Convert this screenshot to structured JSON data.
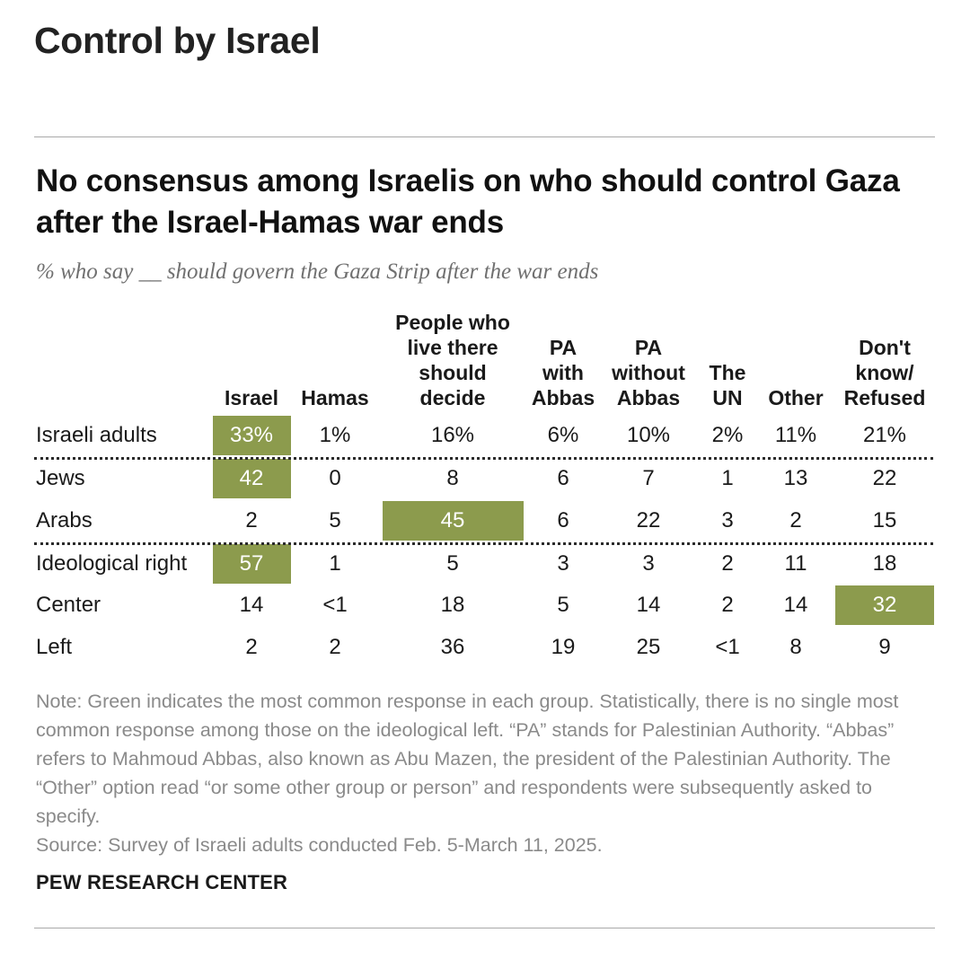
{
  "section_title": "Control by Israel",
  "chart_data": {
    "type": "table",
    "title": "No consensus among Israelis on who should control Gaza after the Israel-Hamas war ends",
    "subtitle": "% who say __ should govern the Gaza Strip after the war ends",
    "columns": [
      "Israel",
      "Hamas",
      "People who\nlive there\nshould\ndecide",
      "PA\nwith\nAbbas",
      "PA\nwithout\nAbbas",
      "The\nUN",
      "Other",
      "Don't\nknow/\nRefused"
    ],
    "rows": [
      {
        "label": "Israeli adults",
        "values": [
          "33%",
          "1%",
          "16%",
          "6%",
          "10%",
          "2%",
          "11%",
          "21%"
        ],
        "highlight": 0
      },
      {
        "label": "Jews",
        "values": [
          "42",
          "0",
          "8",
          "6",
          "7",
          "1",
          "13",
          "22"
        ],
        "highlight": 0
      },
      {
        "label": "Arabs",
        "values": [
          "2",
          "5",
          "45",
          "6",
          "22",
          "3",
          "2",
          "15"
        ],
        "highlight": 2
      },
      {
        "label": "Ideological right",
        "values": [
          "57",
          "1",
          "5",
          "3",
          "3",
          "2",
          "11",
          "18"
        ],
        "highlight": 0
      },
      {
        "label": "Center",
        "values": [
          "14",
          "<1",
          "18",
          "5",
          "14",
          "2",
          "14",
          "32"
        ],
        "highlight": 7
      },
      {
        "label": "Left",
        "values": [
          "2",
          "2",
          "36",
          "19",
          "25",
          "<1",
          "8",
          "9"
        ],
        "highlight": null
      }
    ],
    "highlight_color": "#8c9b4d"
  },
  "note": "Note: Green indicates the most common response in each group. Statistically, there is no single most common response among those on the ideological left. “PA” stands for Palestinian Authority. “Abbas” refers to Mahmoud Abbas, also known as Abu Mazen, the president of the Palestinian Authority. The “Other” option read “or some other group or person” and respondents were subsequently asked to specify.",
  "source": "Source: Survey of Israeli adults conducted Feb. 5-March 11, 2025.",
  "org": "PEW RESEARCH CENTER"
}
